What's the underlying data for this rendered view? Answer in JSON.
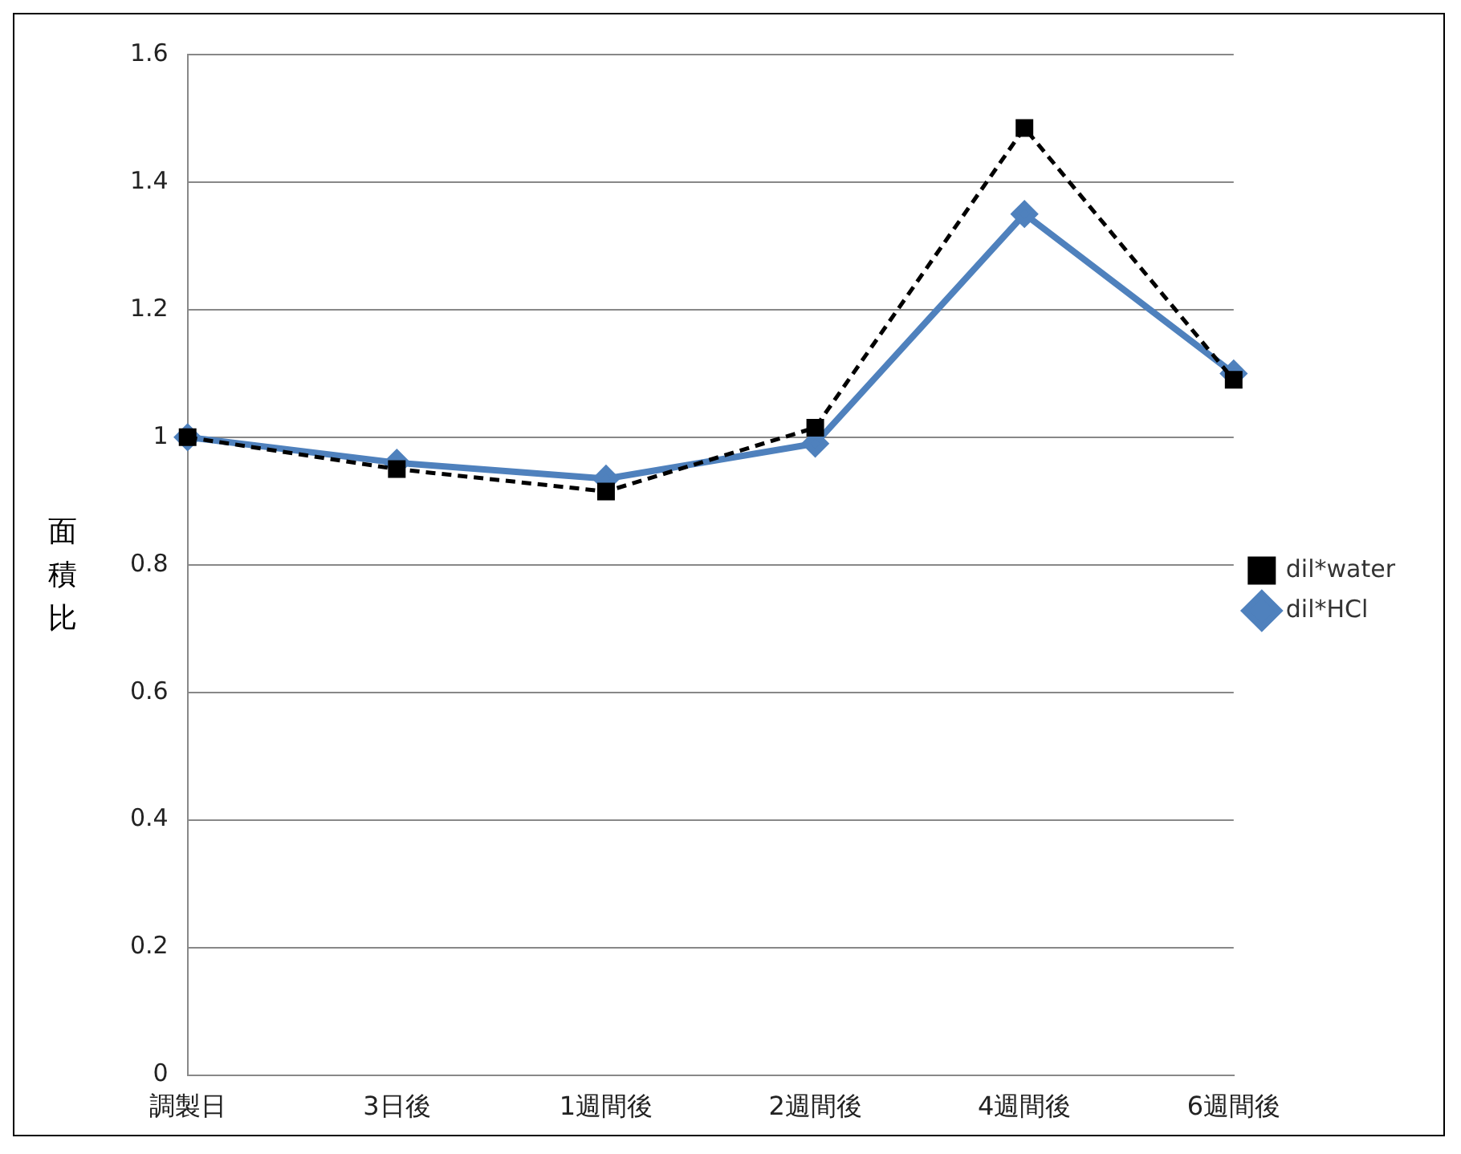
{
  "chart_data": {
    "type": "line",
    "ylabel": "面積比",
    "categories": [
      "調製日",
      "3日後",
      "1週間後",
      "2週間後",
      "4週間後",
      "6週間後"
    ],
    "series": [
      {
        "name": "dil*HCl",
        "color": "#4f81bd",
        "marker": "diamond",
        "line_style": "solid",
        "values": [
          1.0,
          0.96,
          0.935,
          0.99,
          1.35,
          1.1
        ]
      },
      {
        "name": "dil*water",
        "color": "#000000",
        "marker": "square",
        "line_style": "dashed",
        "values": [
          1.0,
          0.95,
          0.915,
          1.015,
          1.485,
          1.09
        ]
      }
    ],
    "ylim": [
      0,
      1.6
    ],
    "yticks": [
      0,
      0.2,
      0.4,
      0.6,
      0.8,
      1,
      1.2,
      1.4,
      1.6
    ],
    "grid": "y",
    "legend": "right"
  }
}
